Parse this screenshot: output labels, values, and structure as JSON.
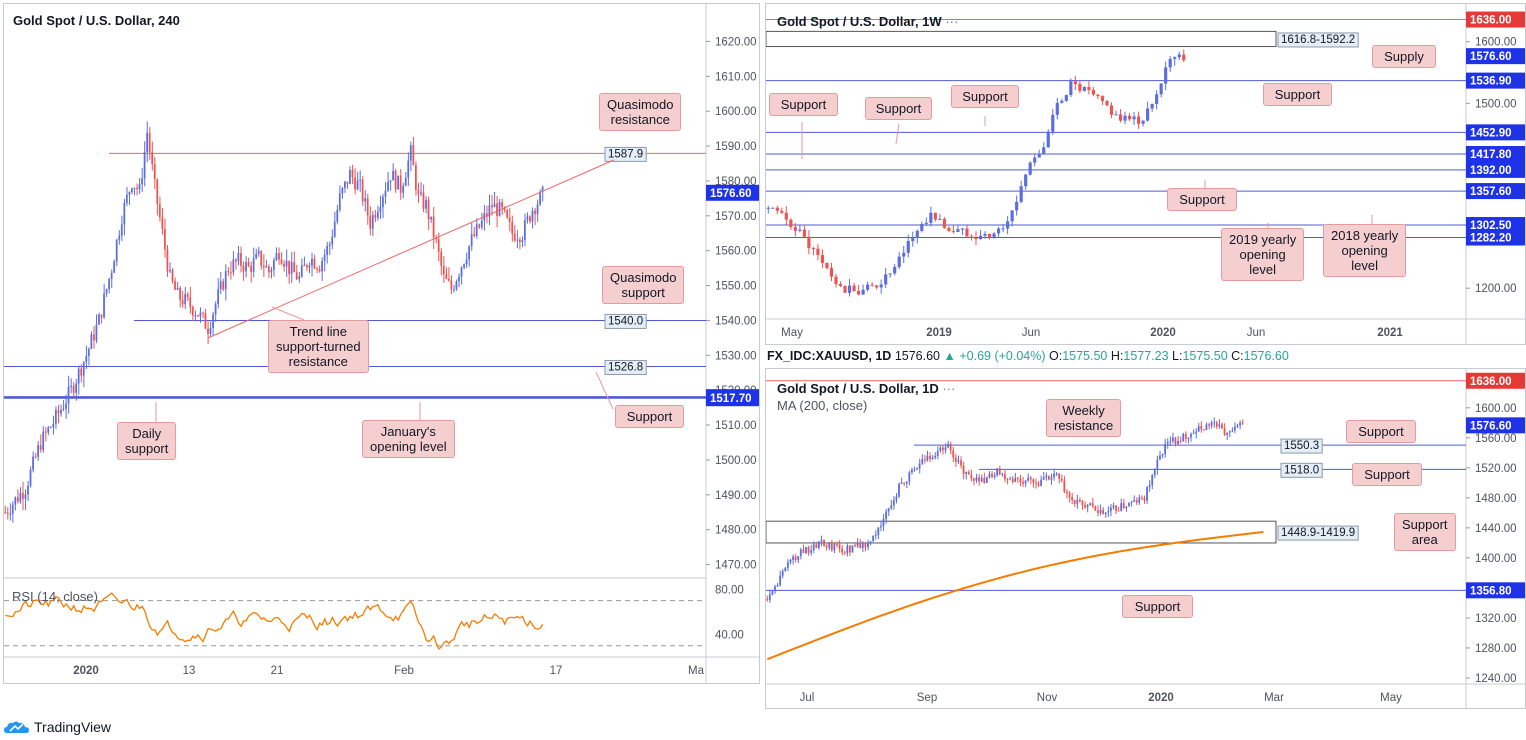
{
  "colors": {
    "up": "#5b6ee1",
    "down": "#ef5350",
    "res": "#f06464",
    "sup": "#4f5bd5",
    "ma": "#f57c00",
    "rsi": "#f57c00",
    "callout_bg": "#f5ced0",
    "supply_flag": "#e53935",
    "support_flag": "#1e32e8",
    "last_flag": "#1e32e8"
  },
  "chart_data": [
    {
      "id": "h4",
      "type": "candlestick",
      "title": "Gold Spot / U.S. Dollar, 240",
      "ylim": [
        1465,
        1625
      ],
      "yticks": [
        1470,
        1480,
        1490,
        1500,
        1510,
        1520,
        1530,
        1540,
        1550,
        1560,
        1570,
        1580,
        1590,
        1600,
        1610,
        1620
      ],
      "xlabels": [
        "2020",
        "13",
        "21",
        "Feb",
        "17",
        "Ma"
      ],
      "anchors": [
        [
          0,
          1485
        ],
        [
          8,
          1492
        ],
        [
          14,
          1505
        ],
        [
          20,
          1512
        ],
        [
          26,
          1520
        ],
        [
          32,
          1530
        ],
        [
          37,
          1540
        ],
        [
          42,
          1555
        ],
        [
          46,
          1570
        ],
        [
          50,
          1580
        ],
        [
          53,
          1577
        ],
        [
          56,
          1594
        ],
        [
          59,
          1578
        ],
        [
          62,
          1565
        ],
        [
          65,
          1552
        ],
        [
          68,
          1547
        ],
        [
          72,
          1545
        ],
        [
          76,
          1542
        ],
        [
          80,
          1538
        ],
        [
          84,
          1547
        ],
        [
          88,
          1555
        ],
        [
          92,
          1557
        ],
        [
          96,
          1555
        ],
        [
          100,
          1558
        ],
        [
          104,
          1554
        ],
        [
          108,
          1560
        ],
        [
          112,
          1555
        ],
        [
          116,
          1552
        ],
        [
          120,
          1558
        ],
        [
          124,
          1556
        ],
        [
          128,
          1562
        ],
        [
          132,
          1575
        ],
        [
          136,
          1582
        ],
        [
          140,
          1578
        ],
        [
          144,
          1568
        ],
        [
          148,
          1575
        ],
        [
          152,
          1582
        ],
        [
          156,
          1578
        ],
        [
          160,
          1588
        ],
        [
          163,
          1575
        ],
        [
          166,
          1573
        ],
        [
          170,
          1562
        ],
        [
          173,
          1552
        ],
        [
          176,
          1549
        ],
        [
          180,
          1556
        ],
        [
          184,
          1563
        ],
        [
          188,
          1568
        ],
        [
          192,
          1573
        ],
        [
          196,
          1571
        ],
        [
          200,
          1565
        ],
        [
          204,
          1565
        ],
        [
          208,
          1572
        ],
        [
          212,
          1576
        ]
      ],
      "levels": [
        {
          "value": 1587.9,
          "label": "1587.9",
          "color": "res"
        },
        {
          "value": 1540.0,
          "label": "1540.0",
          "color": "sup"
        },
        {
          "value": 1526.8,
          "label": "1526.8",
          "color": "sup"
        },
        {
          "value": 1518.0,
          "label": "1518.00",
          "color": "sup",
          "flag": true
        },
        {
          "value": 1517.7,
          "label": "1517.70",
          "color": "sup",
          "flag": true
        }
      ],
      "trendline": {
        "from": [
          80,
          1535
        ],
        "to": [
          240,
          1586
        ]
      },
      "last": 1576.6,
      "last_label": "1576.60",
      "rsi": {
        "label": "RSI (14, close)",
        "ticks": [
          80,
          40
        ],
        "upper": 70,
        "lower": 30
      }
    },
    {
      "id": "w1",
      "type": "candlestick",
      "title": "Gold Spot / U.S. Dollar, 1W",
      "ylim": [
        1150,
        1645
      ],
      "yticks": [
        1200,
        1300,
        1400,
        1500,
        1600
      ],
      "xlabels": [
        "May",
        "2019",
        "Jun",
        "2020",
        "Jun",
        "2021"
      ],
      "anchors": [
        [
          0,
          1330
        ],
        [
          6,
          1300
        ],
        [
          12,
          1240
        ],
        [
          16,
          1198
        ],
        [
          20,
          1195
        ],
        [
          24,
          1205
        ],
        [
          28,
          1230
        ],
        [
          32,
          1285
        ],
        [
          36,
          1320
        ],
        [
          40,
          1295
        ],
        [
          44,
          1290
        ],
        [
          48,
          1285
        ],
        [
          52,
          1295
        ],
        [
          55,
          1340
        ],
        [
          58,
          1410
        ],
        [
          61,
          1425
        ],
        [
          64,
          1500
        ],
        [
          67,
          1530
        ],
        [
          70,
          1520
        ],
        [
          74,
          1500
        ],
        [
          78,
          1475
        ],
        [
          82,
          1470
        ],
        [
          85,
          1495
        ],
        [
          88,
          1560
        ],
        [
          90,
          1580
        ],
        [
          92,
          1577
        ]
      ],
      "zone": {
        "from": 1592.2,
        "to": 1616.8,
        "label": "1616.8-1592.2"
      },
      "levels": [
        {
          "value": 1636.0,
          "label": "1636.00",
          "color": "res",
          "flag": true
        },
        {
          "value": 1536.9,
          "label": "1536.90",
          "color": "sup",
          "flag": true
        },
        {
          "value": 1452.9,
          "label": "1452.90",
          "color": "sup",
          "flag": true
        },
        {
          "value": 1417.8,
          "label": "1417.80",
          "color": "sup",
          "flag": true
        },
        {
          "value": 1392.0,
          "label": "1392.00",
          "color": "sup",
          "flag": true
        },
        {
          "value": 1357.6,
          "label": "1357.60",
          "color": "sup",
          "flag": true
        },
        {
          "value": 1302.5,
          "label": "1302.50",
          "color": "sup",
          "flag": true
        },
        {
          "value": 1282.2,
          "label": "1282.20",
          "color": "sup",
          "flag": true
        }
      ],
      "last": 1576.6,
      "last_label": "1576.60"
    },
    {
      "id": "d1",
      "type": "candlestick",
      "title": "Gold Spot / U.S. Dollar, 1D",
      "ylim": [
        1232,
        1645
      ],
      "yticks": [
        1240,
        1280,
        1320,
        1360,
        1400,
        1440,
        1480,
        1520,
        1560,
        1600
      ],
      "xlabels": [
        "Jul",
        "Sep",
        "Nov",
        "2020",
        "Mar",
        "May"
      ],
      "anchors": [
        [
          0,
          1345
        ],
        [
          10,
          1400
        ],
        [
          20,
          1420
        ],
        [
          30,
          1410
        ],
        [
          40,
          1420
        ],
        [
          52,
          1500
        ],
        [
          62,
          1535
        ],
        [
          70,
          1550
        ],
        [
          76,
          1515
        ],
        [
          82,
          1500
        ],
        [
          88,
          1515
        ],
        [
          96,
          1505
        ],
        [
          104,
          1500
        ],
        [
          112,
          1510
        ],
        [
          118,
          1475
        ],
        [
          124,
          1470
        ],
        [
          130,
          1460
        ],
        [
          138,
          1470
        ],
        [
          146,
          1480
        ],
        [
          150,
          1520
        ],
        [
          154,
          1550
        ],
        [
          160,
          1560
        ],
        [
          166,
          1570
        ],
        [
          172,
          1580
        ],
        [
          178,
          1565
        ],
        [
          184,
          1577
        ]
      ],
      "zone": {
        "from": 1419.9,
        "to": 1448.9,
        "label": "1448.9-1419.9"
      },
      "levels": [
        {
          "value": 1636.0,
          "label": "1636.00",
          "color": "res",
          "flag": true
        },
        {
          "value": 1550.3,
          "label": "1550.3",
          "color": "sup"
        },
        {
          "value": 1518.0,
          "label": "1518.0",
          "color": "sup"
        },
        {
          "value": 1356.8,
          "label": "1356.80",
          "color": "sup",
          "flag": true
        }
      ],
      "ma": {
        "label": "MA (200, close)",
        "from": [
          0,
          1265
        ],
        "to": [
          192,
          1463
        ]
      },
      "last": 1576.6,
      "last_label": "1576.60"
    }
  ],
  "ohlc": {
    "symbol": "FX_IDC:XAUUSD, 1D",
    "last": "1576.60",
    "change": "+0.69 (+0.04%)",
    "o_label": "O:",
    "o": "1575.50",
    "h_label": "H:",
    "h": "1577.23",
    "l_label": "L:",
    "l": "1575.50",
    "c_label": "C:",
    "c": "1576.60"
  },
  "annotations": {
    "h4": {
      "quasimodo_res": "Quasimodo\nresistance",
      "quasimodo_sup": "Quasimodo\nsupport",
      "trend": "Trend line\nsupport-turned\nresistance",
      "support": "Support",
      "daily_support": "Daily\nsupport",
      "january": "January's\nopening level"
    },
    "w1": {
      "support1": "Support",
      "support2": "Support",
      "support3": "Support",
      "support4": "Support",
      "support5": "Support",
      "supply": "Supply",
      "yearly2019": "2019 yearly\nopening\nlevel",
      "yearly2018": "2018 yearly\nopening\nlevel"
    },
    "d1": {
      "weekly_res": "Weekly\nresistance",
      "support1": "Support",
      "support2": "Support",
      "support_area": "Support\narea",
      "support3": "Support"
    }
  },
  "w1_title_dots": "···",
  "d1_title_dots": "···",
  "footer": {
    "brand": "TradingView"
  }
}
